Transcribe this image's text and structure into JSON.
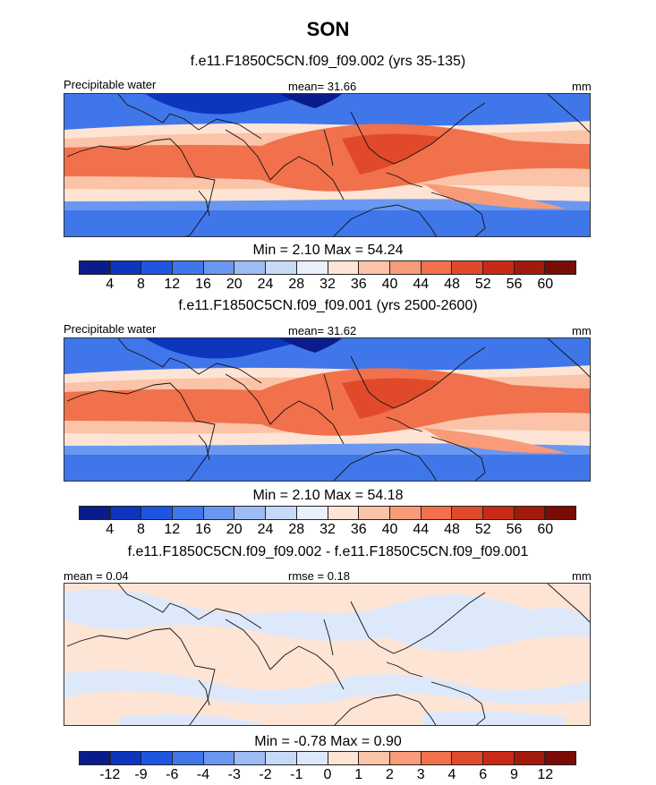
{
  "figure_title": "SON",
  "chart_data": [
    {
      "type": "heatmap",
      "title": "f.e11.F1850C5CN.f09_f09.002 (yrs 35-135)",
      "left_label": "Precipitable water",
      "center_label": "mean=  31.66",
      "right_label": "mm",
      "stats": "Min =   2.10 Max =  54.24",
      "min": 2.1,
      "max": 54.24,
      "mean": 31.66,
      "colorbar_levels": [
        "4",
        "8",
        "12",
        "16",
        "20",
        "24",
        "28",
        "32",
        "36",
        "40",
        "44",
        "48",
        "52",
        "56",
        "60"
      ],
      "colorbar_colors": [
        "#0a1c8c",
        "#0e35bd",
        "#1e55e0",
        "#3f77ea",
        "#6a98f0",
        "#9dbcf5",
        "#c6daf8",
        "#e8f0fb",
        "#fde4d4",
        "#fbc3a7",
        "#f89b78",
        "#f0714c",
        "#e04a2a",
        "#c92a15",
        "#a21a0c",
        "#7a0c06"
      ]
    },
    {
      "type": "heatmap",
      "title": "f.e11.F1850C5CN.f09_f09.001 (yrs 2500-2600)",
      "left_label": "Precipitable water",
      "center_label": "mean=  31.62",
      "right_label": "mm",
      "stats": "Min =   2.10 Max =  54.18",
      "min": 2.1,
      "max": 54.18,
      "mean": 31.62,
      "colorbar_levels": [
        "4",
        "8",
        "12",
        "16",
        "20",
        "24",
        "28",
        "32",
        "36",
        "40",
        "44",
        "48",
        "52",
        "56",
        "60"
      ],
      "colorbar_colors": [
        "#0a1c8c",
        "#0e35bd",
        "#1e55e0",
        "#3f77ea",
        "#6a98f0",
        "#9dbcf5",
        "#c6daf8",
        "#e8f0fb",
        "#fde4d4",
        "#fbc3a7",
        "#f89b78",
        "#f0714c",
        "#e04a2a",
        "#c92a15",
        "#a21a0c",
        "#7a0c06"
      ]
    },
    {
      "type": "heatmap",
      "title": "f.e11.F1850C5CN.f09_f09.002 - f.e11.F1850C5CN.f09_f09.001",
      "left_label": "mean =   0.04",
      "center_label": "rmse =   0.18",
      "right_label": "mm",
      "stats": "Min =  -0.78 Max =   0.90",
      "min": -0.78,
      "max": 0.9,
      "mean": 0.04,
      "rmse": 0.18,
      "colorbar_levels": [
        "-12",
        "-9",
        "-6",
        "-4",
        "-3",
        "-2",
        "-1",
        "0",
        "1",
        "2",
        "3",
        "4",
        "6",
        "9",
        "12"
      ],
      "colorbar_colors": [
        "#0a1c8c",
        "#0e35bd",
        "#1e55e0",
        "#3f77ea",
        "#6a98f0",
        "#9dbcf5",
        "#c6daf8",
        "#dde9fb",
        "#fde4d4",
        "#fbc3a7",
        "#f89b78",
        "#f0714c",
        "#e04a2a",
        "#c92a15",
        "#a21a0c",
        "#7a0c06"
      ]
    }
  ]
}
